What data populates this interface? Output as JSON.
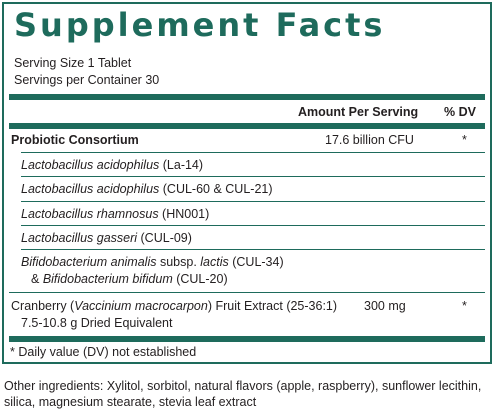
{
  "panel": {
    "title": "Supplement Facts",
    "serving_size": "Serving Size 1 Tablet",
    "servings_per_container": "Servings per Container 30",
    "header_amount": "Amount Per Serving",
    "header_dv": "% DV",
    "probiotic": {
      "name": "Probiotic Consortium",
      "amount": "17.6 billion CFU",
      "dv": "*",
      "strains": [
        {
          "species": "Lactobacillus acidophilus",
          "strain": " (La-14)"
        },
        {
          "species": "Lactobacillus acidophilus",
          "strain": " (CUL-60 & CUL-21)"
        },
        {
          "species": "Lactobacillus rhamnosus",
          "strain": " (HN001)"
        },
        {
          "species": "Lactobacillus gasseri",
          "strain": " (CUL-09)"
        },
        {
          "line1_species": "Bifidobacterium animalis",
          "line1_mid": " subsp. ",
          "line1_sub": "lactis",
          "line1_strain": " (CUL-34)",
          "line2_prefix": "& ",
          "line2_species": "Bifidobacterium bifidum",
          "line2_strain": " (CUL-20)"
        }
      ]
    },
    "cranberry": {
      "prefix": "Cranberry (",
      "latin": "Vaccinium macrocarpon",
      "suffix": ") Fruit Extract (25-36:1)",
      "line2": "7.5-10.8 g Dried Equivalent",
      "amount": "300 mg",
      "dv": "*"
    },
    "footnote": "* Daily value (DV) not established"
  },
  "other_ingredients": "Other ingredients: Xylitol, sorbitol, natural flavors (apple, raspberry), sunflower lecithin, silica, magnesium stearate, stevia leaf extract",
  "colors": {
    "accent": "#1e6b5c",
    "text": "#231f20"
  }
}
